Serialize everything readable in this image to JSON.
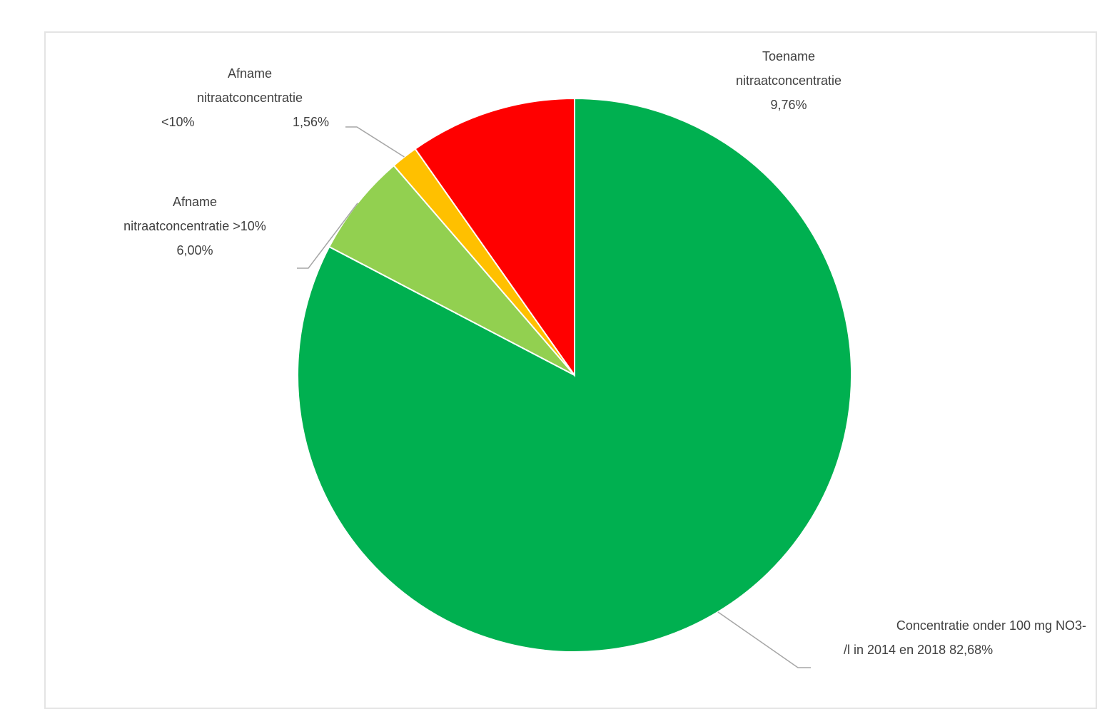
{
  "chart_data": {
    "type": "pie",
    "start_angle_deg": 0,
    "direction": "clockwise",
    "slices": [
      {
        "label_lines": [
          "Concentratie onder 100 mg NO3-",
          "/l in 2014 en 2018"
        ],
        "value_label": "82,68%",
        "value": 82.68,
        "color": "#00b050"
      },
      {
        "label_lines": [
          "Afname",
          "nitraatconcentratie >10%"
        ],
        "value_label": "6,00%",
        "value": 6.0,
        "color": "#92d050"
      },
      {
        "label_lines": [
          "Afname",
          "nitraatconcentratie",
          "<10%"
        ],
        "value_label": "1,56%",
        "value": 1.56,
        "color": "#ffc000"
      },
      {
        "label_lines": [
          "Toename",
          "nitraatconcentratie"
        ],
        "value_label": "9,76%",
        "value": 9.76,
        "color": "#ff0000"
      }
    ],
    "leader_line_color": "#a6a6a6"
  }
}
